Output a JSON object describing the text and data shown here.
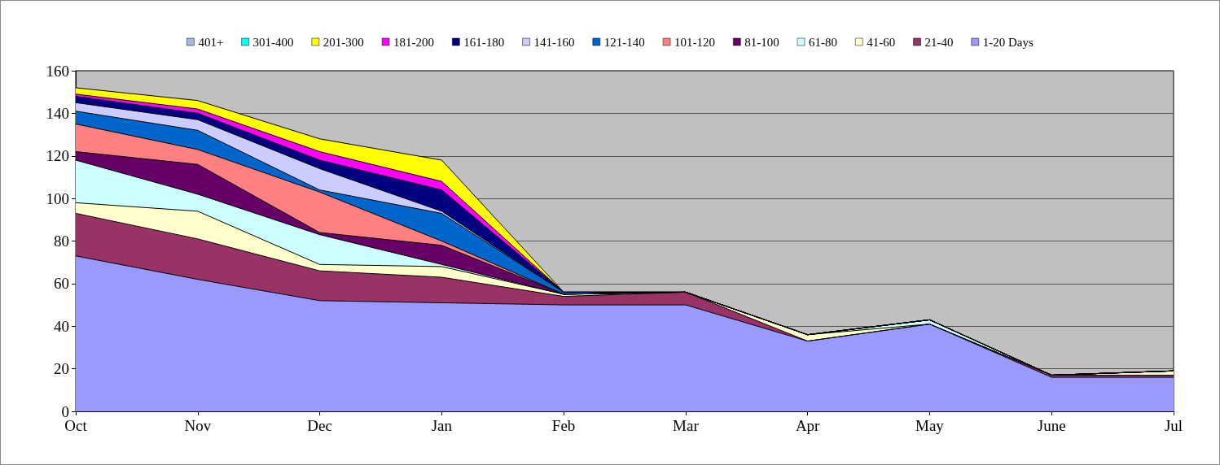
{
  "chart_data": {
    "type": "area",
    "stacked": true,
    "legend": "top",
    "grid": "y",
    "marker": "none",
    "categories": [
      "Oct",
      "Nov",
      "Dec",
      "Jan",
      "Feb",
      "Mar",
      "Apr",
      "May",
      "June",
      "Jul"
    ],
    "ylim": [
      0,
      160
    ],
    "yticks": [
      0,
      20,
      40,
      60,
      80,
      100,
      120,
      140,
      160
    ],
    "series": [
      {
        "name": "1-20 Days",
        "color": "#9999ff",
        "values": [
          73,
          62,
          52,
          51,
          50,
          50,
          33,
          41,
          16,
          16
        ]
      },
      {
        "name": "21-40",
        "color": "#993366",
        "values": [
          20,
          19,
          14,
          12,
          4,
          6,
          0,
          0,
          1,
          1
        ]
      },
      {
        "name": "41-60",
        "color": "#ffffcc",
        "values": [
          5,
          13,
          3,
          5,
          1,
          0,
          3,
          0,
          0,
          2
        ]
      },
      {
        "name": "61-80",
        "color": "#ccffff",
        "values": [
          20,
          8,
          14,
          1,
          0,
          0,
          0,
          2,
          0,
          0
        ]
      },
      {
        "name": "81-100",
        "color": "#660066",
        "values": [
          4,
          14,
          1,
          9,
          0,
          0,
          0,
          0,
          0,
          0
        ]
      },
      {
        "name": "101-120",
        "color": "#ff8080",
        "values": [
          13,
          7,
          19,
          2,
          0,
          0,
          0,
          0,
          0,
          0
        ]
      },
      {
        "name": "121-140",
        "color": "#0066cc",
        "values": [
          6,
          9,
          1,
          13,
          1,
          0,
          0,
          0,
          0,
          0
        ]
      },
      {
        "name": "141-160",
        "color": "#ccccff",
        "values": [
          4,
          5,
          10,
          1,
          0,
          0,
          0,
          0,
          0,
          0
        ]
      },
      {
        "name": "161-180",
        "color": "#000080",
        "values": [
          3,
          3,
          4,
          10,
          0,
          0,
          0,
          0,
          0,
          0
        ]
      },
      {
        "name": "181-200",
        "color": "#ff00ff",
        "values": [
          1,
          2,
          4,
          4,
          0,
          0,
          0,
          0,
          0,
          0
        ]
      },
      {
        "name": "201-300",
        "color": "#ffff00",
        "values": [
          3,
          4,
          6,
          10,
          0,
          0,
          0,
          0,
          0,
          0
        ]
      },
      {
        "name": "301-400",
        "color": "#00ffff",
        "values": [
          null,
          null,
          null,
          null,
          null,
          null,
          null,
          null,
          null,
          null
        ]
      },
      {
        "name": "401+",
        "color": "#a9b9dc",
        "values": [
          null,
          null,
          null,
          null,
          null,
          null,
          null,
          null,
          null,
          null
        ]
      }
    ]
  }
}
